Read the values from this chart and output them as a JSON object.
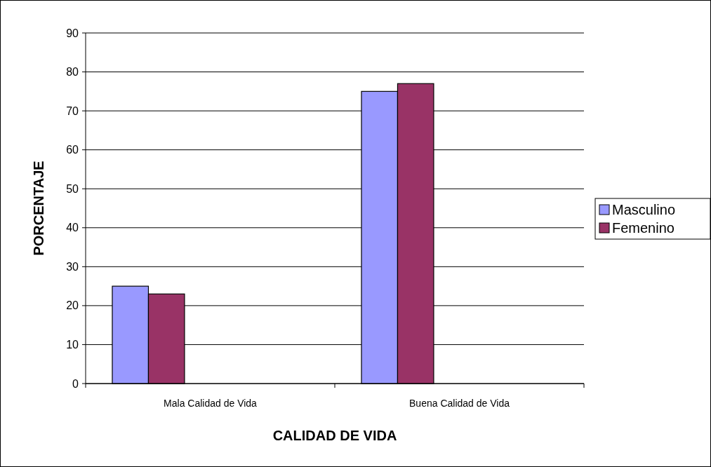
{
  "chart_data": {
    "type": "bar",
    "xlabel": "CALIDAD DE VIDA",
    "ylabel": "PORCENTAJE",
    "categories": [
      "Mala Calidad de Vida",
      "Buena Calidad de Vida"
    ],
    "series": [
      {
        "name": "Masculino",
        "color": "#9999ff",
        "values": [
          25,
          75
        ]
      },
      {
        "name": "Femenino",
        "color": "#993366",
        "values": [
          23,
          77
        ]
      }
    ],
    "ylim": [
      0,
      90
    ],
    "yticks": [
      0,
      10,
      20,
      30,
      40,
      50,
      60,
      70,
      80,
      90
    ],
    "grid": "y",
    "legend": "right"
  }
}
